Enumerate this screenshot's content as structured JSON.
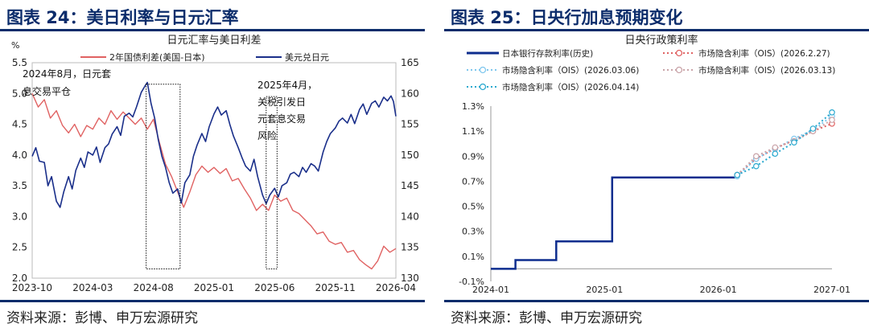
{
  "left": {
    "figure_title": "图表 24：美日利率与日元汇率",
    "source": "资料来源：彭博、申万宏源研究",
    "colors": {
      "rate_diff": "#e06262",
      "usdjpy": "#1a2f8a",
      "frame": "#bbbbbb"
    }
  },
  "right": {
    "figure_title": "图表 25：日央行加息预期变化",
    "source": "资料来源：彭博、申万宏源研究",
    "colors": {
      "history": "#0d2d8e",
      "ois_0227": "#e06262",
      "ois_0306": "#7fc7ee",
      "ois_0313": "#c9a3a8",
      "ois_0414": "#2aa9cf"
    }
  },
  "chart_data": [
    {
      "type": "line",
      "title": "日元汇率与美日利差",
      "left_axis_unit": "%",
      "x_ticks": [
        "2023-10",
        "2024-03",
        "2024-08",
        "2025-01",
        "2025-06",
        "2025-11",
        "2026-04"
      ],
      "x_range": [
        0,
        30
      ],
      "y_left_ticks": [
        "2.0",
        "2.5",
        "3.0",
        "3.5",
        "4.0",
        "4.5",
        "5.0",
        "5.5"
      ],
      "y_left_range": [
        2.0,
        5.5
      ],
      "y_right_ticks": [
        "130",
        "135",
        "140",
        "145",
        "150",
        "155",
        "160",
        "165"
      ],
      "y_right_range": [
        130,
        165
      ],
      "legend_position": "top",
      "series": [
        {
          "name": "2年国债利差(美国-日本)",
          "axis": "left",
          "points": [
            [
              0,
              5.0
            ],
            [
              0.5,
              4.78
            ],
            [
              1,
              4.9
            ],
            [
              1.5,
              4.6
            ],
            [
              2,
              4.72
            ],
            [
              2.5,
              4.48
            ],
            [
              3,
              4.36
            ],
            [
              3.5,
              4.5
            ],
            [
              4,
              4.3
            ],
            [
              4.5,
              4.48
            ],
            [
              5,
              4.42
            ],
            [
              5.5,
              4.6
            ],
            [
              6,
              4.5
            ],
            [
              6.5,
              4.72
            ],
            [
              7,
              4.58
            ],
            [
              7.5,
              4.7
            ],
            [
              8,
              4.6
            ],
            [
              8.5,
              4.5
            ],
            [
              9,
              4.6
            ],
            [
              9.5,
              4.42
            ],
            [
              10,
              4.58
            ],
            [
              10.5,
              4.2
            ],
            [
              11,
              3.85
            ],
            [
              11.5,
              3.65
            ],
            [
              12,
              3.4
            ],
            [
              12.5,
              3.15
            ],
            [
              13,
              3.4
            ],
            [
              13.5,
              3.68
            ],
            [
              14,
              3.82
            ],
            [
              14.5,
              3.72
            ],
            [
              15,
              3.8
            ],
            [
              15.5,
              3.7
            ],
            [
              16,
              3.78
            ],
            [
              16.5,
              3.58
            ],
            [
              17,
              3.62
            ],
            [
              17.5,
              3.45
            ],
            [
              18,
              3.3
            ],
            [
              18.5,
              3.1
            ],
            [
              19,
              3.2
            ],
            [
              19.5,
              3.1
            ],
            [
              20,
              3.35
            ],
            [
              20.5,
              3.25
            ],
            [
              21,
              3.3
            ],
            [
              21.5,
              3.1
            ],
            [
              22,
              3.05
            ],
            [
              22.5,
              2.95
            ],
            [
              23,
              2.85
            ],
            [
              23.5,
              2.72
            ],
            [
              24,
              2.75
            ],
            [
              24.5,
              2.6
            ],
            [
              25,
              2.55
            ],
            [
              25.5,
              2.58
            ],
            [
              26,
              2.42
            ],
            [
              26.5,
              2.45
            ],
            [
              27,
              2.3
            ],
            [
              27.5,
              2.22
            ],
            [
              28,
              2.15
            ],
            [
              28.5,
              2.28
            ],
            [
              29,
              2.52
            ],
            [
              29.5,
              2.42
            ],
            [
              30,
              2.48
            ]
          ]
        },
        {
          "name": "美元兑日元",
          "axis": "right",
          "points": [
            [
              0,
              149.8
            ],
            [
              0.3,
              151.2
            ],
            [
              0.6,
              149
            ],
            [
              1,
              148.8
            ],
            [
              1.3,
              145
            ],
            [
              1.6,
              146.5
            ],
            [
              2,
              142.5
            ],
            [
              2.3,
              141.5
            ],
            [
              2.6,
              144
            ],
            [
              3,
              146.5
            ],
            [
              3.3,
              144.5
            ],
            [
              3.6,
              147.5
            ],
            [
              4,
              149.5
            ],
            [
              4.3,
              148
            ],
            [
              4.6,
              150.5
            ],
            [
              5,
              150
            ],
            [
              5.3,
              151.3
            ],
            [
              5.6,
              148.8
            ],
            [
              6,
              151.2
            ],
            [
              6.3,
              151.8
            ],
            [
              6.6,
              153.4
            ],
            [
              7,
              154.6
            ],
            [
              7.3,
              153.2
            ],
            [
              7.6,
              156.3
            ],
            [
              8,
              156.8
            ],
            [
              8.3,
              156.2
            ],
            [
              8.6,
              157.8
            ],
            [
              9,
              160.2
            ],
            [
              9.3,
              161.2
            ],
            [
              9.5,
              161.8
            ],
            [
              9.8,
              158.4
            ],
            [
              10.1,
              156
            ],
            [
              10.4,
              152.5
            ],
            [
              10.7,
              149.8
            ],
            [
              11,
              148
            ],
            [
              11.3,
              145.5
            ],
            [
              11.6,
              143.8
            ],
            [
              12,
              144.5
            ],
            [
              12.3,
              142.2
            ],
            [
              12.6,
              145.5
            ],
            [
              13,
              146.8
            ],
            [
              13.3,
              149.8
            ],
            [
              13.6,
              151.6
            ],
            [
              14,
              153.5
            ],
            [
              14.3,
              152.2
            ],
            [
              14.6,
              154.6
            ],
            [
              15,
              156.7
            ],
            [
              15.3,
              157.8
            ],
            [
              15.6,
              156.5
            ],
            [
              16,
              157.2
            ],
            [
              16.3,
              155
            ],
            [
              16.6,
              153.1
            ],
            [
              17,
              151.2
            ],
            [
              17.3,
              149.6
            ],
            [
              17.6,
              148.2
            ],
            [
              18,
              147.4
            ],
            [
              18.3,
              149.3
            ],
            [
              18.6,
              146.5
            ],
            [
              19,
              143.5
            ],
            [
              19.3,
              142.1
            ],
            [
              19.6,
              143.5
            ],
            [
              20,
              144.6
            ],
            [
              20.3,
              143.2
            ],
            [
              20.6,
              145
            ],
            [
              21,
              145.5
            ],
            [
              21.3,
              146.9
            ],
            [
              21.6,
              147.2
            ],
            [
              22,
              146.5
            ],
            [
              22.3,
              148
            ],
            [
              22.6,
              147.2
            ],
            [
              23,
              148.6
            ],
            [
              23.3,
              148.2
            ],
            [
              23.6,
              147.4
            ],
            [
              24,
              150.5
            ],
            [
              24.3,
              152.2
            ],
            [
              24.6,
              153.5
            ],
            [
              25,
              154.4
            ],
            [
              25.3,
              155.5
            ],
            [
              25.6,
              156
            ],
            [
              26,
              155.2
            ],
            [
              26.3,
              156.6
            ],
            [
              26.6,
              155.1
            ],
            [
              27,
              157.4
            ],
            [
              27.3,
              158.3
            ],
            [
              27.6,
              156.6
            ],
            [
              28,
              158.4
            ],
            [
              28.3,
              158.8
            ],
            [
              28.6,
              157.8
            ],
            [
              29,
              159.4
            ],
            [
              29.3,
              158.8
            ],
            [
              29.6,
              159.6
            ],
            [
              29.8,
              158.7
            ],
            [
              30,
              156.3
            ]
          ]
        }
      ],
      "annotations": [
        {
          "lines": [
            "2024年8月，日元套",
            "息交易平仓"
          ],
          "box_x": [
            9.4,
            12.2
          ],
          "box_y_right": [
            131.5,
            161.5
          ]
        },
        {
          "lines": [
            "2025年4月，",
            "关税引发日",
            "元套息交易",
            "风险"
          ],
          "box_x": [
            19.3,
            20.2
          ],
          "box_y_right": [
            131.5,
            159.5
          ]
        }
      ]
    },
    {
      "type": "line",
      "title": "日央行政策利率",
      "x_ticks": [
        "2024-01",
        "2025-01",
        "2026-01",
        "2027-01"
      ],
      "x_range": [
        0,
        36
      ],
      "y_ticks": [
        "-0.1%",
        "0.1%",
        "0.3%",
        "0.5%",
        "0.7%",
        "0.9%",
        "1.1%",
        "1.3%"
      ],
      "y_range": [
        -0.1,
        1.3
      ],
      "legend_position": "top",
      "series": [
        {
          "name": "日本银行存款利率(历史)",
          "style": "step",
          "points": [
            [
              0,
              0
            ],
            [
              2.6,
              0
            ],
            [
              2.6,
              0.07
            ],
            [
              6.9,
              0.07
            ],
            [
              6.9,
              0.22
            ],
            [
              12.8,
              0.22
            ],
            [
              12.8,
              0.73
            ],
            [
              26,
              0.73
            ]
          ]
        },
        {
          "name": "市场隐含利率（OIS）(2026.2.27)",
          "style": "dotted-markers",
          "points": [
            [
              26,
              0.75
            ],
            [
              28,
              0.88
            ],
            [
              30,
              0.96
            ],
            [
              32,
              1.03
            ],
            [
              34,
              1.1
            ],
            [
              36,
              1.16
            ]
          ]
        },
        {
          "name": "市场隐含利率（OIS）(2026.03.06)",
          "style": "dotted-markers",
          "points": [
            [
              26,
              0.74
            ],
            [
              28,
              0.88
            ],
            [
              30,
              0.96
            ],
            [
              32,
              1.04
            ],
            [
              34,
              1.11
            ],
            [
              36,
              1.22
            ]
          ]
        },
        {
          "name": "市场隐含利率（OIS）(2026.03.13)",
          "style": "dotted-markers",
          "points": [
            [
              26,
              0.75
            ],
            [
              28,
              0.9
            ],
            [
              30,
              0.97
            ],
            [
              32,
              1.02
            ],
            [
              34,
              1.1
            ],
            [
              36,
              1.19
            ]
          ]
        },
        {
          "name": "市场隐含利率（OIS）(2026.04.14)",
          "style": "dotted-markers",
          "points": [
            [
              26,
              0.75
            ],
            [
              28,
              0.82
            ],
            [
              30,
              0.92
            ],
            [
              32,
              1.01
            ],
            [
              34,
              1.12
            ],
            [
              36,
              1.25
            ]
          ]
        }
      ]
    }
  ]
}
